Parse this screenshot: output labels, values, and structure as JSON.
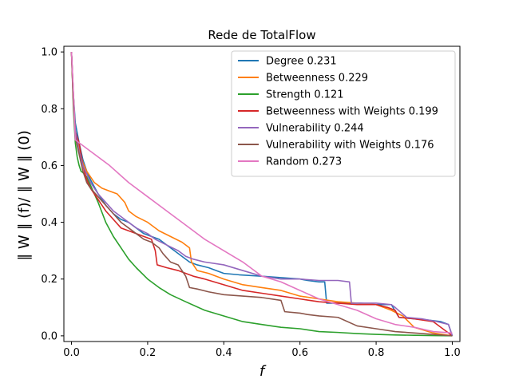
{
  "chart_data": {
    "type": "line",
    "title": "Rede de TotalFlow",
    "xlabel": "f",
    "ylabel": "∥ W ∥ (f)/ ∥ W ∥ (0)",
    "xlim": [
      -0.02,
      1.02
    ],
    "ylim": [
      -0.02,
      1.02
    ],
    "xticks": [
      0.0,
      0.2,
      0.4,
      0.6,
      0.8,
      1.0
    ],
    "xtick_labels": [
      "0.0",
      "0.2",
      "0.4",
      "0.6",
      "0.8",
      "1.0"
    ],
    "yticks": [
      0.0,
      0.2,
      0.4,
      0.6,
      0.8,
      1.0
    ],
    "ytick_labels": [
      "0.0",
      "0.2",
      "0.4",
      "0.6",
      "0.8",
      "1.0"
    ],
    "grid": false,
    "legend_position": "top-right",
    "series": [
      {
        "name": "Degree 0.231",
        "color": "#1f77b4",
        "x": [
          0.0,
          0.005,
          0.01,
          0.02,
          0.03,
          0.04,
          0.05,
          0.07,
          0.09,
          0.11,
          0.13,
          0.15,
          0.17,
          0.19,
          0.21,
          0.23,
          0.25,
          0.27,
          0.29,
          0.31,
          0.33,
          0.36,
          0.4,
          0.44,
          0.5,
          0.55,
          0.6,
          0.62,
          0.65,
          0.665,
          0.67,
          0.72,
          0.76,
          0.8,
          0.84,
          0.86,
          0.9,
          0.94,
          0.97,
          0.99,
          1.0
        ],
        "y": [
          1.0,
          0.85,
          0.75,
          0.68,
          0.62,
          0.58,
          0.55,
          0.5,
          0.46,
          0.43,
          0.41,
          0.4,
          0.38,
          0.36,
          0.35,
          0.34,
          0.32,
          0.3,
          0.28,
          0.26,
          0.25,
          0.24,
          0.22,
          0.215,
          0.21,
          0.205,
          0.2,
          0.195,
          0.19,
          0.19,
          0.115,
          0.115,
          0.115,
          0.11,
          0.11,
          0.065,
          0.06,
          0.055,
          0.05,
          0.04,
          0.0
        ]
      },
      {
        "name": "Betweenness 0.229",
        "color": "#ff7f0e",
        "x": [
          0.0,
          0.005,
          0.01,
          0.02,
          0.03,
          0.04,
          0.05,
          0.06,
          0.08,
          0.1,
          0.12,
          0.14,
          0.15,
          0.17,
          0.2,
          0.23,
          0.26,
          0.29,
          0.31,
          0.315,
          0.33,
          0.36,
          0.4,
          0.45,
          0.5,
          0.55,
          0.6,
          0.65,
          0.7,
          0.75,
          0.8,
          0.82,
          0.84,
          0.87,
          0.9,
          0.95,
          1.0
        ],
        "y": [
          1.0,
          0.85,
          0.72,
          0.66,
          0.61,
          0.58,
          0.56,
          0.54,
          0.52,
          0.51,
          0.5,
          0.47,
          0.44,
          0.42,
          0.4,
          0.37,
          0.35,
          0.33,
          0.31,
          0.26,
          0.23,
          0.22,
          0.2,
          0.18,
          0.17,
          0.16,
          0.14,
          0.13,
          0.12,
          0.115,
          0.11,
          0.1,
          0.09,
          0.07,
          0.03,
          0.01,
          0.0
        ]
      },
      {
        "name": "Strength 0.121",
        "color": "#2ca02c",
        "x": [
          0.0,
          0.005,
          0.01,
          0.015,
          0.02,
          0.025,
          0.03,
          0.04,
          0.05,
          0.07,
          0.09,
          0.11,
          0.13,
          0.15,
          0.17,
          0.2,
          0.23,
          0.26,
          0.3,
          0.35,
          0.4,
          0.45,
          0.5,
          0.55,
          0.6,
          0.65,
          0.7,
          0.75,
          0.8,
          0.85,
          0.9,
          0.95,
          1.0
        ],
        "y": [
          1.0,
          0.8,
          0.68,
          0.63,
          0.6,
          0.58,
          0.575,
          0.56,
          0.53,
          0.47,
          0.4,
          0.35,
          0.31,
          0.27,
          0.24,
          0.2,
          0.17,
          0.145,
          0.12,
          0.09,
          0.07,
          0.05,
          0.04,
          0.03,
          0.025,
          0.015,
          0.012,
          0.008,
          0.005,
          0.003,
          0.002,
          0.001,
          0.0
        ]
      },
      {
        "name": "Betweenness with Weights 0.199",
        "color": "#d62728",
        "x": [
          0.0,
          0.005,
          0.01,
          0.02,
          0.03,
          0.04,
          0.05,
          0.07,
          0.09,
          0.11,
          0.13,
          0.15,
          0.17,
          0.19,
          0.21,
          0.22,
          0.225,
          0.25,
          0.28,
          0.3,
          0.32,
          0.35,
          0.4,
          0.45,
          0.5,
          0.55,
          0.6,
          0.65,
          0.7,
          0.75,
          0.8,
          0.83,
          0.85,
          0.86,
          0.9,
          0.95,
          1.0
        ],
        "y": [
          1.0,
          0.82,
          0.72,
          0.68,
          0.6,
          0.55,
          0.52,
          0.48,
          0.44,
          0.41,
          0.38,
          0.37,
          0.36,
          0.35,
          0.34,
          0.3,
          0.25,
          0.24,
          0.23,
          0.22,
          0.21,
          0.2,
          0.18,
          0.16,
          0.15,
          0.14,
          0.13,
          0.12,
          0.115,
          0.11,
          0.11,
          0.1,
          0.09,
          0.065,
          0.06,
          0.05,
          0.0
        ]
      },
      {
        "name": "Vulnerability 0.244",
        "color": "#9467bd",
        "x": [
          0.0,
          0.005,
          0.01,
          0.02,
          0.03,
          0.04,
          0.05,
          0.07,
          0.09,
          0.11,
          0.13,
          0.15,
          0.17,
          0.2,
          0.22,
          0.25,
          0.28,
          0.3,
          0.32,
          0.35,
          0.4,
          0.45,
          0.5,
          0.55,
          0.6,
          0.65,
          0.7,
          0.73,
          0.735,
          0.76,
          0.8,
          0.84,
          0.85,
          0.88,
          0.92,
          0.96,
          0.99,
          1.0
        ],
        "y": [
          1.0,
          0.85,
          0.72,
          0.65,
          0.6,
          0.57,
          0.54,
          0.5,
          0.47,
          0.44,
          0.42,
          0.4,
          0.38,
          0.36,
          0.34,
          0.32,
          0.3,
          0.28,
          0.27,
          0.26,
          0.25,
          0.23,
          0.21,
          0.2,
          0.2,
          0.195,
          0.195,
          0.19,
          0.115,
          0.115,
          0.115,
          0.11,
          0.1,
          0.065,
          0.06,
          0.05,
          0.04,
          0.0
        ]
      },
      {
        "name": "Vulnerability with Weights 0.176",
        "color": "#8c564b",
        "x": [
          0.0,
          0.005,
          0.01,
          0.02,
          0.03,
          0.04,
          0.05,
          0.07,
          0.09,
          0.11,
          0.13,
          0.15,
          0.17,
          0.19,
          0.21,
          0.23,
          0.24,
          0.26,
          0.28,
          0.29,
          0.3,
          0.31,
          0.33,
          0.36,
          0.4,
          0.45,
          0.5,
          0.55,
          0.56,
          0.6,
          0.62,
          0.65,
          0.7,
          0.75,
          0.8,
          0.85,
          0.9,
          0.95,
          1.0
        ],
        "y": [
          1.0,
          0.82,
          0.7,
          0.64,
          0.58,
          0.54,
          0.52,
          0.49,
          0.46,
          0.43,
          0.4,
          0.38,
          0.36,
          0.34,
          0.33,
          0.31,
          0.29,
          0.26,
          0.25,
          0.23,
          0.21,
          0.17,
          0.165,
          0.155,
          0.145,
          0.14,
          0.135,
          0.125,
          0.085,
          0.08,
          0.075,
          0.07,
          0.065,
          0.035,
          0.025,
          0.015,
          0.01,
          0.005,
          0.0
        ]
      },
      {
        "name": "Random 0.273",
        "color": "#e377c2",
        "x": [
          0.0,
          0.005,
          0.01,
          0.05,
          0.1,
          0.15,
          0.2,
          0.25,
          0.3,
          0.35,
          0.4,
          0.45,
          0.5,
          0.55,
          0.6,
          0.65,
          0.7,
          0.75,
          0.8,
          0.85,
          0.9,
          0.95,
          1.0
        ],
        "y": [
          1.0,
          0.86,
          0.69,
          0.65,
          0.6,
          0.54,
          0.49,
          0.44,
          0.39,
          0.34,
          0.3,
          0.26,
          0.21,
          0.19,
          0.16,
          0.13,
          0.11,
          0.09,
          0.06,
          0.04,
          0.03,
          0.015,
          0.01
        ]
      }
    ]
  }
}
